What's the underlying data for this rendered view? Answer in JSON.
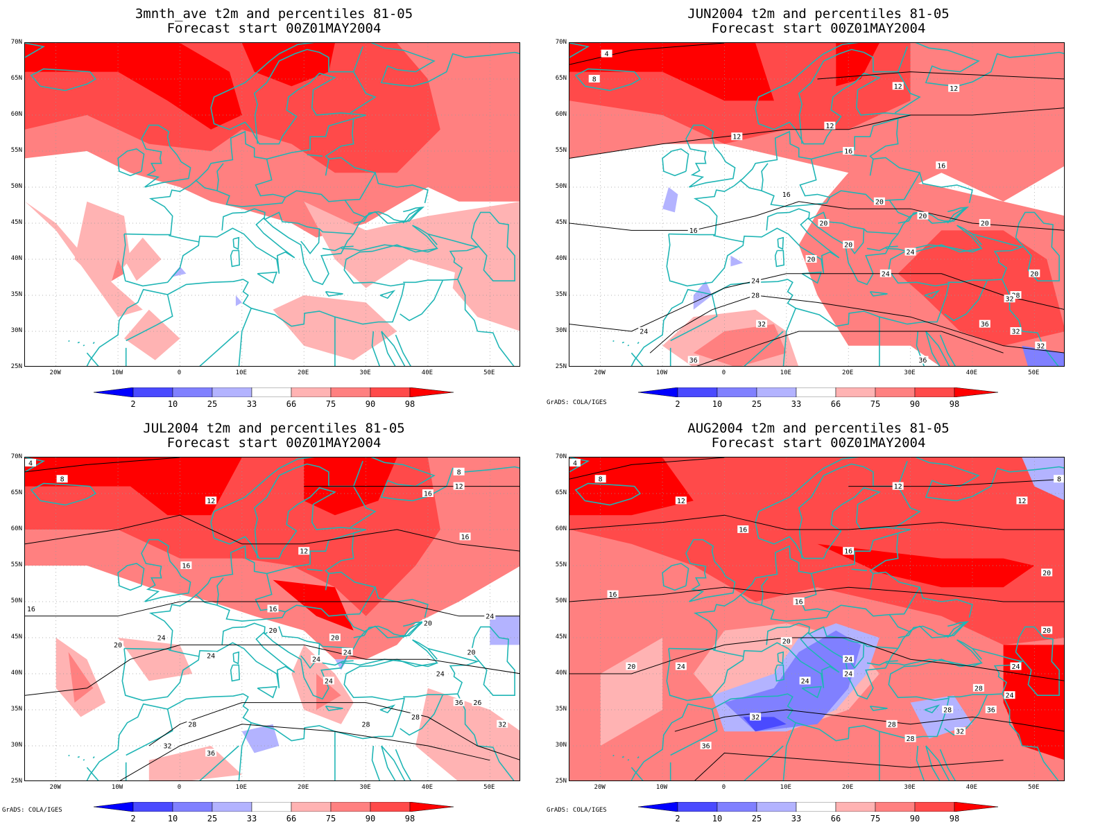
{
  "panels": [
    {
      "title_line1": "3mnth_ave t2m and percentiles 81-05",
      "title_line2": "Forecast start 00Z01MAY2004",
      "contours": [],
      "credit": ""
    },
    {
      "title_line1": "JUN2004 t2m and percentiles 81-05",
      "title_line2": "Forecast start 00Z01MAY2004",
      "contours": [
        "4",
        "8",
        "12",
        "12",
        "12",
        "12",
        "16",
        "16",
        "16",
        "16",
        "20",
        "20",
        "20",
        "20",
        "20",
        "20",
        "20",
        "24",
        "24",
        "24",
        "24",
        "28",
        "28",
        "32",
        "32",
        "32",
        "32",
        "36",
        "36",
        "36"
      ],
      "credit": "GrADS: COLA/IGES"
    },
    {
      "title_line1": "JUL2004 t2m and percentiles 81-05",
      "title_line2": "Forecast start 00Z01MAY2004",
      "contours": [
        "4",
        "8",
        "8",
        "12",
        "12",
        "12",
        "16",
        "16",
        "16",
        "16",
        "16",
        "20",
        "20",
        "20",
        "20",
        "20",
        "24",
        "24",
        "24",
        "24",
        "24",
        "24",
        "24",
        "26",
        "28",
        "28",
        "28",
        "32",
        "32",
        "36",
        "36"
      ],
      "credit": "GrADS: COLA/IGES"
    },
    {
      "title_line1": "AUG2004 t2m and percentiles 81-05",
      "title_line2": "Forecast start 00Z01MAY2004",
      "contours": [
        "4",
        "8",
        "8",
        "12",
        "12",
        "12",
        "16",
        "16",
        "16",
        "16",
        "20",
        "20",
        "20",
        "20",
        "24",
        "24",
        "24",
        "24",
        "24",
        "24",
        "28",
        "28",
        "28",
        "28",
        "32",
        "32",
        "36",
        "36"
      ],
      "credit": "GrADS: COLA/IGES"
    }
  ],
  "lat_labels": [
    "70N",
    "65N",
    "60N",
    "55N",
    "50N",
    "45N",
    "40N",
    "35N",
    "30N",
    "25N"
  ],
  "lon_labels": [
    "20W",
    "10W",
    "0",
    "10E",
    "20E",
    "30E",
    "40E",
    "50E"
  ],
  "colorbar": {
    "labels": [
      "2",
      "10",
      "25",
      "33",
      "66",
      "75",
      "90",
      "98"
    ],
    "colors": [
      "#0000ff",
      "#4a4aff",
      "#8080ff",
      "#b3b3ff",
      "#ffffff",
      "#ffb3b3",
      "#ff8080",
      "#ff4a4a",
      "#ff0000"
    ]
  },
  "colors": {
    "coast": "#1fb5b5",
    "contour": "#000000",
    "dark_red": "#ff0000",
    "red": "#ff4a4a",
    "mid_red": "#ff8080",
    "light_red": "#ffb3b3",
    "light_blue": "#b3b3ff",
    "mid_blue": "#8080ff",
    "blue": "#4a4aff"
  }
}
